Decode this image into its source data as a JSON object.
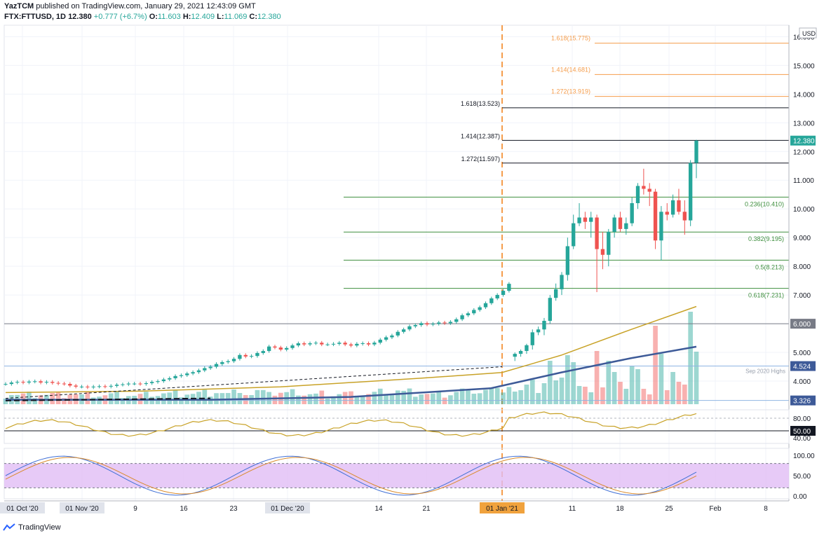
{
  "header": {
    "author": "YazTCM",
    "published_text": "published on TradingView.com, January 29, 2021 12:43:09 GMT",
    "symbol": "FTX:FTTUSD, 1D",
    "last": "12.380",
    "change": "+0.777 (+6.7%)",
    "o_label": "O:",
    "o": "11.603",
    "h_label": "H:",
    "h": "12.409",
    "l_label": "L:",
    "l": "11.069",
    "c_label": "C:",
    "c": "12.380"
  },
  "footer": {
    "brand": "TradingView"
  },
  "currency": "USD",
  "price_axis": [
    "16.000",
    "15.000",
    "14.000",
    "13.000",
    "12.000",
    "11.000",
    "10.000",
    "9.000",
    "8.000",
    "7.000",
    "6.000",
    "5.000",
    "4.000"
  ],
  "price_tags": {
    "last": "12.380",
    "level_6": "6.000",
    "level_4524": "4.524",
    "level_3326": "3.326",
    "rsi_50": "50.00"
  },
  "level_note": "Sep 2020 Highs",
  "fib_labels": {
    "ext_orange": [
      "1.618(15.775)",
      "1.414(14.681)",
      "1.272(13.919)"
    ],
    "ext_black": [
      "1.618(13.523)",
      "1.414(12.387)",
      "1.272(11.597)"
    ],
    "retrace_green": [
      "0.236(10.410)",
      "0.382(9.195)",
      "0.5(8.213)",
      "0.618(7.231)"
    ]
  },
  "rsi_axis": [
    "80.00",
    "40.00"
  ],
  "stoch_axis": [
    "100.00",
    "50.00",
    "0.00"
  ],
  "date_axis": [
    {
      "label": "01 Oct '20",
      "boxed": true
    },
    {
      "label": "01 Nov '20",
      "boxed": true
    },
    {
      "label": "9",
      "boxed": false
    },
    {
      "label": "16",
      "boxed": false
    },
    {
      "label": "23",
      "boxed": false
    },
    {
      "label": "01 Dec '20",
      "boxed": true
    },
    {
      "label": "14",
      "boxed": false
    },
    {
      "label": "21",
      "boxed": false
    },
    {
      "label": "01 Jan '21",
      "boxed": true,
      "highlight": true
    },
    {
      "label": "11",
      "boxed": false
    },
    {
      "label": "18",
      "boxed": false
    },
    {
      "label": "25",
      "boxed": false
    },
    {
      "label": "Feb",
      "boxed": false
    },
    {
      "label": "8",
      "boxed": false
    }
  ],
  "colors": {
    "up": "#26a69a",
    "down": "#ef5350",
    "ma_fast": "#c8a227",
    "ma_slow": "#3d5a98",
    "fib_orange": "#f59d4c",
    "fib_green": "#3f8f3f",
    "rsi": "#c8a227",
    "stoch_k": "#3f6fd6",
    "stoch_d": "#d98a2b",
    "stoch_band": "#e1bdf5"
  },
  "chart_data": {
    "type": "candlestick",
    "symbol": "FTX:FTTUSD",
    "interval": "1D",
    "price_range": [
      3.0,
      16.4
    ],
    "candles_recent": [
      {
        "date": "2020-12-28",
        "o": 4.85,
        "h": 5.0,
        "l": 4.7,
        "c": 4.95
      },
      {
        "date": "2020-12-29",
        "o": 4.95,
        "h": 5.1,
        "l": 4.85,
        "c": 5.05
      },
      {
        "date": "2020-12-30",
        "o": 5.05,
        "h": 5.3,
        "l": 4.95,
        "c": 5.25
      },
      {
        "date": "2020-12-31",
        "o": 5.25,
        "h": 5.8,
        "l": 5.1,
        "c": 5.7
      },
      {
        "date": "2021-01-01",
        "o": 5.7,
        "h": 5.9,
        "l": 5.6,
        "c": 5.8
      },
      {
        "date": "2021-01-02",
        "o": 5.8,
        "h": 6.2,
        "l": 5.6,
        "c": 6.1
      },
      {
        "date": "2021-01-03",
        "o": 6.1,
        "h": 7.0,
        "l": 6.0,
        "c": 6.9
      },
      {
        "date": "2021-01-04",
        "o": 6.9,
        "h": 7.4,
        "l": 6.8,
        "c": 7.2
      },
      {
        "date": "2021-01-05",
        "o": 7.2,
        "h": 7.8,
        "l": 7.0,
        "c": 7.7
      },
      {
        "date": "2021-01-06",
        "o": 7.7,
        "h": 9.0,
        "l": 7.5,
        "c": 8.7
      },
      {
        "date": "2021-01-07",
        "o": 8.7,
        "h": 9.8,
        "l": 8.6,
        "c": 9.5
      },
      {
        "date": "2021-01-08",
        "o": 9.5,
        "h": 10.2,
        "l": 9.4,
        "c": 9.7
      },
      {
        "date": "2021-01-09",
        "o": 9.7,
        "h": 9.9,
        "l": 9.3,
        "c": 9.55
      },
      {
        "date": "2021-01-10",
        "o": 9.55,
        "h": 9.9,
        "l": 9.0,
        "c": 9.7
      },
      {
        "date": "2021-01-11",
        "o": 9.7,
        "h": 9.8,
        "l": 7.1,
        "c": 8.6
      },
      {
        "date": "2021-01-12",
        "o": 8.6,
        "h": 9.2,
        "l": 7.9,
        "c": 8.4
      },
      {
        "date": "2021-01-13",
        "o": 8.4,
        "h": 9.3,
        "l": 8.0,
        "c": 9.2
      },
      {
        "date": "2021-01-14",
        "o": 9.2,
        "h": 9.8,
        "l": 9.0,
        "c": 9.7
      },
      {
        "date": "2021-01-15",
        "o": 9.7,
        "h": 9.9,
        "l": 9.2,
        "c": 9.3
      },
      {
        "date": "2021-01-16",
        "o": 9.3,
        "h": 9.7,
        "l": 9.1,
        "c": 9.5
      },
      {
        "date": "2021-01-17",
        "o": 9.5,
        "h": 10.4,
        "l": 9.4,
        "c": 10.2
      },
      {
        "date": "2021-01-18",
        "o": 10.2,
        "h": 10.9,
        "l": 10.0,
        "c": 10.8
      },
      {
        "date": "2021-01-19",
        "o": 10.8,
        "h": 11.4,
        "l": 10.5,
        "c": 10.7
      },
      {
        "date": "2021-01-20",
        "o": 10.7,
        "h": 10.9,
        "l": 10.1,
        "c": 10.6
      },
      {
        "date": "2021-01-21",
        "o": 10.6,
        "h": 10.7,
        "l": 8.6,
        "c": 8.9
      },
      {
        "date": "2021-01-22",
        "o": 8.9,
        "h": 10.1,
        "l": 8.2,
        "c": 9.9
      },
      {
        "date": "2021-01-23",
        "o": 9.9,
        "h": 10.2,
        "l": 9.6,
        "c": 9.8
      },
      {
        "date": "2021-01-24",
        "o": 9.8,
        "h": 10.5,
        "l": 9.7,
        "c": 10.3
      },
      {
        "date": "2021-01-25",
        "o": 10.3,
        "h": 10.7,
        "l": 9.8,
        "c": 9.9
      },
      {
        "date": "2021-01-26",
        "o": 9.9,
        "h": 10.3,
        "l": 9.1,
        "c": 9.6
      },
      {
        "date": "2021-01-27",
        "o": 9.6,
        "h": 11.7,
        "l": 9.4,
        "c": 11.6
      },
      {
        "date": "2021-01-28",
        "o": 11.603,
        "h": 12.409,
        "l": 11.069,
        "c": 12.38
      }
    ],
    "horizontal_levels": [
      16.0,
      15.775,
      14.681,
      13.919,
      13.523,
      12.387,
      11.597,
      10.41,
      9.195,
      8.213,
      7.231,
      6.0,
      4.524,
      3.326
    ],
    "indicators": [
      "volume",
      "moving averages",
      "RSI",
      "Stochastic RSI"
    ]
  }
}
